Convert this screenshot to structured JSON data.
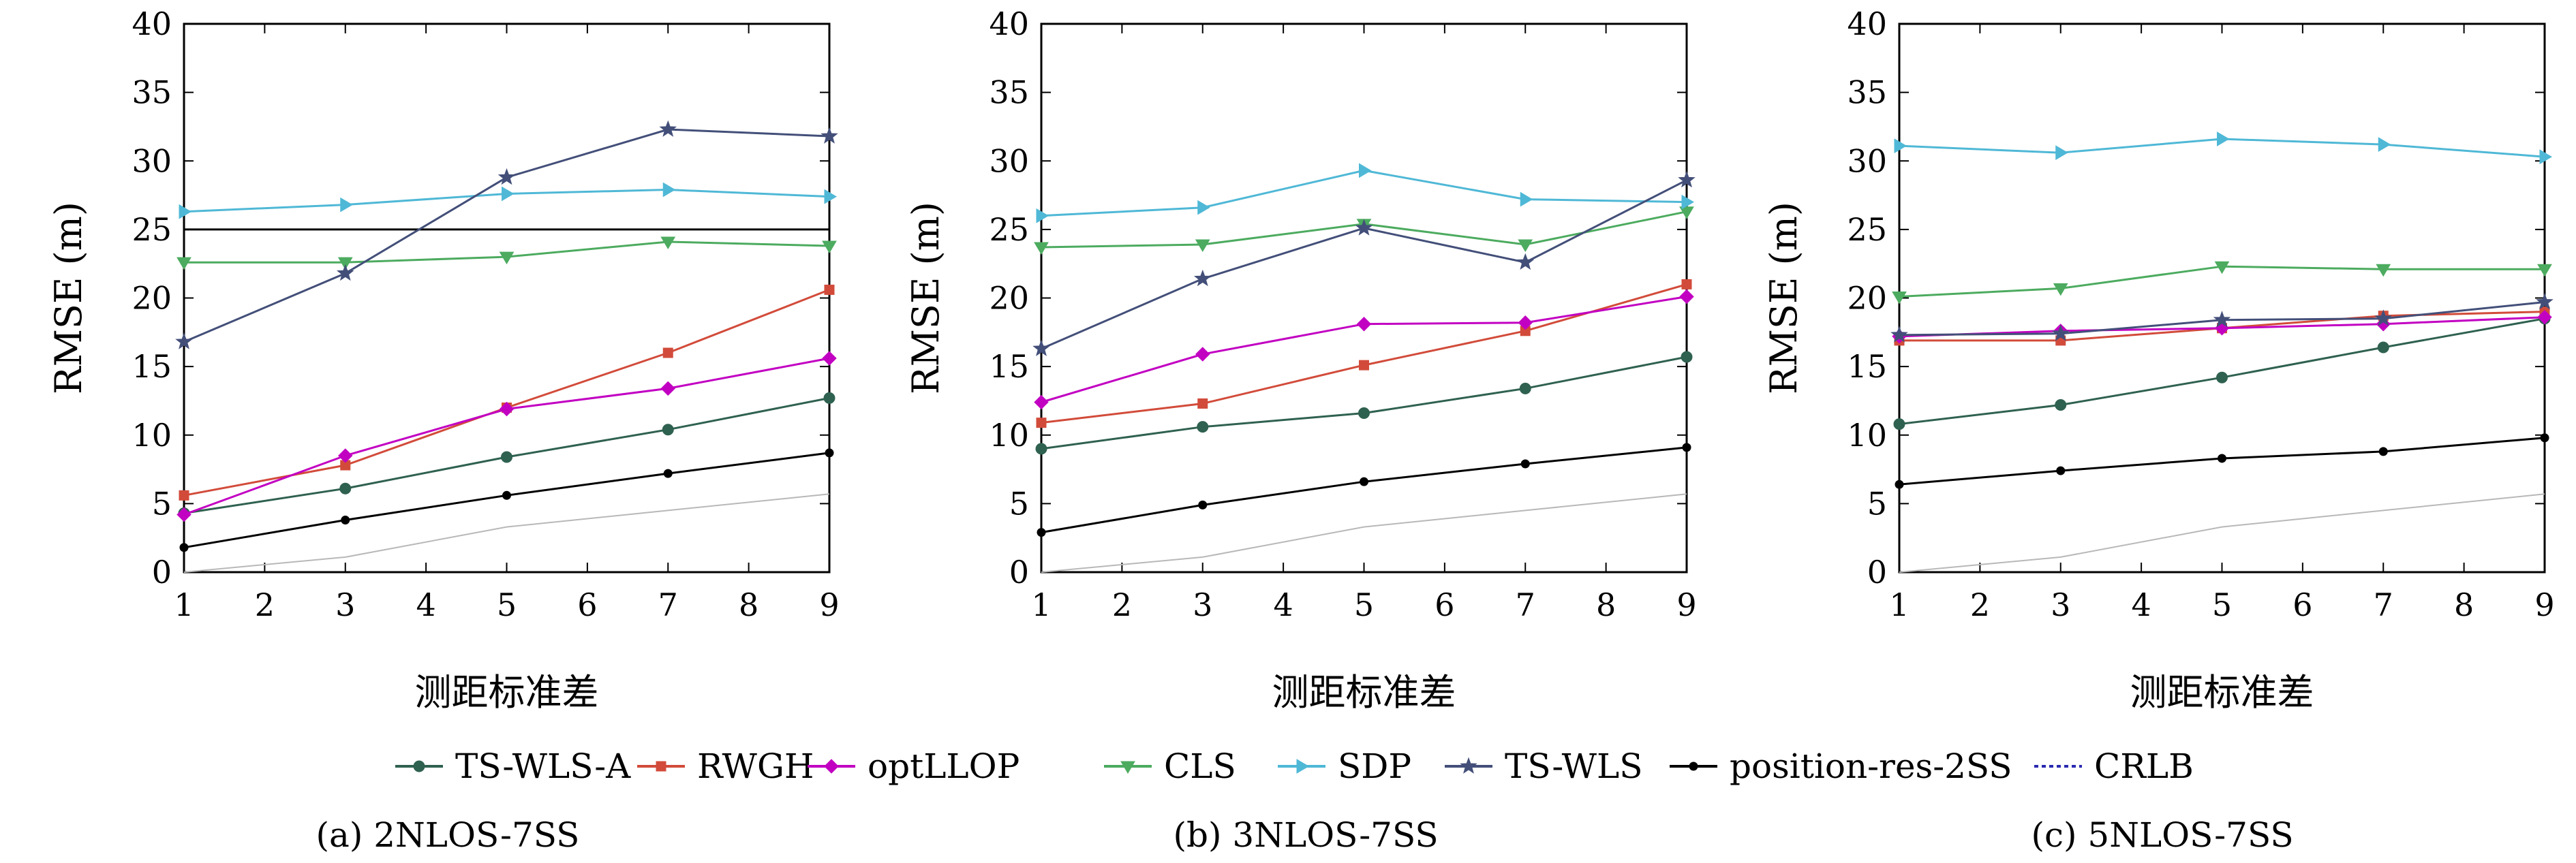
{
  "chart_data": [
    {
      "type": "line",
      "caption": "(a) 2NLOS-7SS",
      "xlabel": "测距标准差",
      "ylabel": "RMSE (m)",
      "xlim": [
        1,
        9
      ],
      "ylim": [
        0,
        40
      ],
      "x_ticks": [
        1,
        2,
        3,
        4,
        5,
        6,
        7,
        8,
        9
      ],
      "y_ticks": [
        0,
        5,
        10,
        15,
        20,
        25,
        30,
        35,
        40
      ],
      "x": [
        1,
        3,
        5,
        7,
        9
      ],
      "grid": false,
      "series": [
        {
          "name": "TS-WLS-A",
          "values": [
            4.3,
            6.1,
            8.4,
            10.4,
            12.7
          ]
        },
        {
          "name": "RWGH",
          "values": [
            5.6,
            7.8,
            12.0,
            16.0,
            20.6
          ]
        },
        {
          "name": "optLLOP",
          "values": [
            4.2,
            8.5,
            11.9,
            13.4,
            15.6
          ]
        },
        {
          "name": "CLS",
          "values": [
            22.6,
            22.6,
            23.0,
            24.1,
            23.8
          ]
        },
        {
          "name": "SDP",
          "values": [
            26.3,
            26.8,
            27.6,
            27.9,
            27.4
          ]
        },
        {
          "name": "TS-WLS",
          "values": [
            16.8,
            21.8,
            28.8,
            32.3,
            31.8
          ]
        },
        {
          "name": "position-res-2SS",
          "values": [
            1.8,
            3.8,
            5.6,
            7.2,
            8.7
          ]
        },
        {
          "name": "CRLB",
          "values": [
            0.0,
            1.1,
            3.3,
            4.5,
            5.7
          ]
        }
      ],
      "reference_line": 25
    },
    {
      "type": "line",
      "caption": "(b) 3NLOS-7SS",
      "xlabel": "测距标准差",
      "ylabel": "RMSE (m)",
      "xlim": [
        1,
        9
      ],
      "ylim": [
        0,
        40
      ],
      "x_ticks": [
        1,
        2,
        3,
        4,
        5,
        6,
        7,
        8,
        9
      ],
      "y_ticks": [
        0,
        5,
        10,
        15,
        20,
        25,
        30,
        35,
        40
      ],
      "x": [
        1,
        3,
        5,
        7,
        9
      ],
      "grid": false,
      "series": [
        {
          "name": "TS-WLS-A",
          "values": [
            9.0,
            10.6,
            11.6,
            13.4,
            15.7
          ]
        },
        {
          "name": "RWGH",
          "values": [
            10.9,
            12.3,
            15.1,
            17.6,
            21.0
          ]
        },
        {
          "name": "optLLOP",
          "values": [
            12.4,
            15.9,
            18.1,
            18.2,
            20.1
          ]
        },
        {
          "name": "CLS",
          "values": [
            23.7,
            23.9,
            25.4,
            23.9,
            26.3
          ]
        },
        {
          "name": "SDP",
          "values": [
            26.0,
            26.6,
            29.3,
            27.2,
            27.0
          ]
        },
        {
          "name": "TS-WLS",
          "values": [
            16.3,
            21.4,
            25.1,
            22.6,
            28.6
          ]
        },
        {
          "name": "position-res-2SS",
          "values": [
            2.9,
            4.9,
            6.6,
            7.9,
            9.1
          ]
        },
        {
          "name": "CRLB",
          "values": [
            0.0,
            1.1,
            3.3,
            4.5,
            5.7
          ]
        }
      ]
    },
    {
      "type": "line",
      "caption": "(c) 5NLOS-7SS",
      "xlabel": "测距标准差",
      "ylabel": "RMSE (m)",
      "xlim": [
        1,
        9
      ],
      "ylim": [
        0,
        40
      ],
      "x_ticks": [
        1,
        2,
        3,
        4,
        5,
        6,
        7,
        8,
        9
      ],
      "y_ticks": [
        0,
        5,
        10,
        15,
        20,
        25,
        30,
        35,
        40
      ],
      "x": [
        1,
        3,
        5,
        7,
        9
      ],
      "grid": false,
      "series": [
        {
          "name": "TS-WLS-A",
          "values": [
            10.8,
            12.2,
            14.2,
            16.4,
            18.5
          ]
        },
        {
          "name": "RWGH",
          "values": [
            16.9,
            16.9,
            17.8,
            18.7,
            19.0
          ]
        },
        {
          "name": "optLLOP",
          "values": [
            17.2,
            17.6,
            17.8,
            18.1,
            18.6
          ]
        },
        {
          "name": "CLS",
          "values": [
            20.1,
            20.7,
            22.3,
            22.1,
            22.1
          ]
        },
        {
          "name": "SDP",
          "values": [
            31.1,
            30.6,
            31.6,
            31.2,
            30.3
          ]
        },
        {
          "name": "TS-WLS",
          "values": [
            17.3,
            17.4,
            18.4,
            18.5,
            19.7
          ]
        },
        {
          "name": "position-res-2SS",
          "values": [
            6.4,
            7.4,
            8.3,
            8.8,
            9.8
          ]
        },
        {
          "name": "CRLB",
          "values": [
            0.0,
            1.1,
            3.3,
            4.5,
            5.7
          ]
        }
      ]
    }
  ],
  "legend": {
    "placement": "bottom-center",
    "entries": [
      {
        "label": "TS-WLS-A",
        "color": "#2f6150",
        "marker": "circle",
        "dash": "solid"
      },
      {
        "label": "RWGH",
        "color": "#d24b3a",
        "marker": "square",
        "dash": "solid"
      },
      {
        "label": "optLLOP",
        "color": "#c200c2",
        "marker": "diamond",
        "dash": "solid"
      },
      {
        "label": "CLS",
        "color": "#4cab5f",
        "marker": "triangle-down",
        "dash": "solid"
      },
      {
        "label": "SDP",
        "color": "#4fb8d6",
        "marker": "triangle-right",
        "dash": "solid"
      },
      {
        "label": "TS-WLS",
        "color": "#434f79",
        "marker": "star",
        "dash": "solid"
      },
      {
        "label": "position-res-2SS",
        "color": "#000000",
        "marker": "dot",
        "dash": "solid"
      },
      {
        "label": "CRLB",
        "color": "#2a2ab0",
        "marker": "none",
        "dash": "dotted"
      }
    ]
  },
  "series_styles": [
    {
      "color": "#2f6150",
      "marker": "circle"
    },
    {
      "color": "#d24b3a",
      "marker": "square"
    },
    {
      "color": "#c200c2",
      "marker": "diamond"
    },
    {
      "color": "#4cab5f",
      "marker": "triangle-down"
    },
    {
      "color": "#4fb8d6",
      "marker": "triangle-right"
    },
    {
      "color": "#434f79",
      "marker": "star"
    },
    {
      "color": "#000000",
      "marker": "dot"
    },
    {
      "color": "#b8b8b8",
      "marker": "none"
    }
  ]
}
